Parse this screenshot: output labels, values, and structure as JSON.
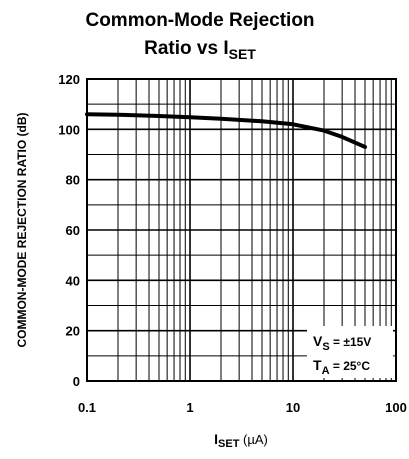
{
  "chart_data": {
    "type": "line",
    "title": {
      "line1": "Common-Mode Rejection",
      "line2_prefix": "Ratio vs I",
      "line2_sub": "SET"
    },
    "ylabel": "COMMON-MODE REJECTION RATIO (dB)",
    "xlabel": {
      "main": "I",
      "sub": "SET",
      "unit": " (µA)"
    },
    "x_scale": "log",
    "xlim": [
      0.1,
      100
    ],
    "ylim": [
      0,
      120
    ],
    "x_ticks": [
      0.1,
      1,
      10,
      100
    ],
    "x_tick_labels": [
      "0.1",
      "1",
      "10",
      "100"
    ],
    "y_ticks": [
      0,
      20,
      40,
      60,
      80,
      100,
      120
    ],
    "y_tick_labels": [
      "0",
      "20",
      "40",
      "60",
      "80",
      "100",
      "120"
    ],
    "grid": true,
    "series": [
      {
        "x": [
          0.1,
          0.2,
          0.5,
          1,
          2,
          5,
          10,
          20,
          30,
          50
        ],
        "y": [
          106,
          105.8,
          105.3,
          104.8,
          104.2,
          103.2,
          102,
          99.5,
          97,
          93
        ]
      }
    ],
    "annotation": {
      "vs_main": "V",
      "vs_sub": "S",
      "vs_value": " = ±15V",
      "ta_main": "T",
      "ta_sub": "A",
      "ta_value": " = 25°C"
    }
  }
}
